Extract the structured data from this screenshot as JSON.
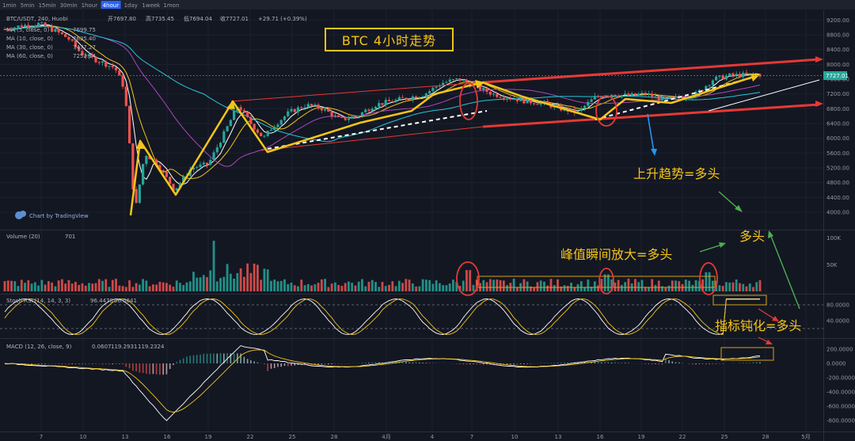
{
  "toolbar": {
    "timeframes": [
      "1min",
      "5min",
      "15min",
      "30min",
      "1hour",
      "4hour",
      "1day",
      "1week",
      "1mon"
    ],
    "active": "4hour"
  },
  "legend": {
    "symbol": "BTC/USDT, 240, Huobi",
    "open": "开7697.80",
    "high": "高7735.45",
    "low": "低7694.04",
    "close": "收7727.01",
    "change": "+29.71 (+0.39%)",
    "ma_rows": [
      {
        "label": "MA (5, close, 0)",
        "value": "7699.75"
      },
      {
        "label": "MA (10, close, 0)",
        "value": "7635.40"
      },
      {
        "label": "MA (30, close, 0)",
        "value": "7477.27"
      },
      {
        "label": "MA (60, close, 0)",
        "value": "7252.14"
      }
    ],
    "volume_label": "Volume (20)",
    "volume_value": "701",
    "stoch_label": "Stoch RSI (14, 14, 3, 3)",
    "stoch_k": "96.4478",
    "stoch_d": "96.0641",
    "macd_label": "MACD (12, 26, close, 9)",
    "macd_hist": "0.0607",
    "macd_line": "119.2931",
    "macd_signal": "119.2324"
  },
  "title_box": "BTC    4小时走势",
  "annotations": {
    "trend": "上升趋势=多头",
    "volume": "峰值瞬间放大=多头",
    "bull": "多头",
    "indicator": "指标钝化=多头"
  },
  "watermark": "Chart by TradingView",
  "price_tag": "7727.01",
  "colors": {
    "up": "#26a69a",
    "down": "#ef5350",
    "annotation": "#f5c518",
    "channel": "#e53935"
  },
  "chart_data": [
    {
      "type": "candlestick",
      "title": "BTC/USDT, 240, Huobi",
      "ylim": [
        3700,
        9400
      ],
      "y_ticks": [
        4000,
        4400,
        4800,
        5200,
        5600,
        6000,
        6400,
        6800,
        7200,
        7600,
        8000,
        8400,
        8800,
        9200
      ],
      "x_ticks": [
        "7",
        "10",
        "13",
        "16",
        "19",
        "22",
        "25",
        "28",
        "4月",
        "4",
        "7",
        "10",
        "13",
        "16",
        "19",
        "22",
        "25",
        "28",
        "5月"
      ],
      "close_path": [
        {
          "x": 0,
          "y": 8950
        },
        {
          "x": 4,
          "y": 9050
        },
        {
          "x": 8,
          "y": 9100
        },
        {
          "x": 12,
          "y": 8900
        },
        {
          "x": 15,
          "y": 8700
        },
        {
          "x": 18,
          "y": 8300
        },
        {
          "x": 22,
          "y": 8100
        },
        {
          "x": 26,
          "y": 7900
        },
        {
          "x": 28,
          "y": 7400
        },
        {
          "x": 29,
          "y": 6500
        },
        {
          "x": 30,
          "y": 4800
        },
        {
          "x": 31,
          "y": 4200
        },
        {
          "x": 32,
          "y": 4900
        },
        {
          "x": 33,
          "y": 5600
        },
        {
          "x": 36,
          "y": 5300
        },
        {
          "x": 40,
          "y": 4600
        },
        {
          "x": 44,
          "y": 5200
        },
        {
          "x": 48,
          "y": 5300
        },
        {
          "x": 52,
          "y": 6200
        },
        {
          "x": 55,
          "y": 6900
        },
        {
          "x": 58,
          "y": 6400
        },
        {
          "x": 61,
          "y": 6000
        },
        {
          "x": 63,
          "y": 6300
        },
        {
          "x": 67,
          "y": 6700
        },
        {
          "x": 71,
          "y": 6900
        },
        {
          "x": 75,
          "y": 6800
        },
        {
          "x": 79,
          "y": 6500
        },
        {
          "x": 83,
          "y": 6600
        },
        {
          "x": 87,
          "y": 6900
        },
        {
          "x": 91,
          "y": 7000
        },
        {
          "x": 95,
          "y": 7100
        },
        {
          "x": 99,
          "y": 7200
        },
        {
          "x": 103,
          "y": 7500
        },
        {
          "x": 107,
          "y": 7600
        },
        {
          "x": 111,
          "y": 7400
        },
        {
          "x": 115,
          "y": 7200
        },
        {
          "x": 119,
          "y": 7100
        },
        {
          "x": 123,
          "y": 7000
        },
        {
          "x": 127,
          "y": 6950
        },
        {
          "x": 131,
          "y": 6800
        },
        {
          "x": 135,
          "y": 6700
        },
        {
          "x": 139,
          "y": 7100
        },
        {
          "x": 143,
          "y": 7200
        },
        {
          "x": 147,
          "y": 7150
        },
        {
          "x": 151,
          "y": 7200
        },
        {
          "x": 155,
          "y": 7050
        },
        {
          "x": 159,
          "y": 7100
        },
        {
          "x": 163,
          "y": 7200
        },
        {
          "x": 167,
          "y": 7600
        },
        {
          "x": 171,
          "y": 7700
        },
        {
          "x": 175,
          "y": 7720
        },
        {
          "x": 178,
          "y": 7727
        }
      ]
    },
    {
      "type": "bar",
      "title": "Volume (20)",
      "ylim": [
        0,
        110000
      ],
      "y_ticks": [
        "50K",
        "100K"
      ]
    },
    {
      "type": "line",
      "title": "Stoch RSI (14, 14, 3, 3)",
      "ylim": [
        0,
        100
      ],
      "y_ticks": [
        40,
        80
      ]
    },
    {
      "type": "line",
      "title": "MACD (12, 26, close, 9)",
      "ylim": [
        -900,
        300
      ],
      "y_ticks": [
        200,
        0,
        -200,
        -400,
        -600,
        -800
      ]
    }
  ]
}
